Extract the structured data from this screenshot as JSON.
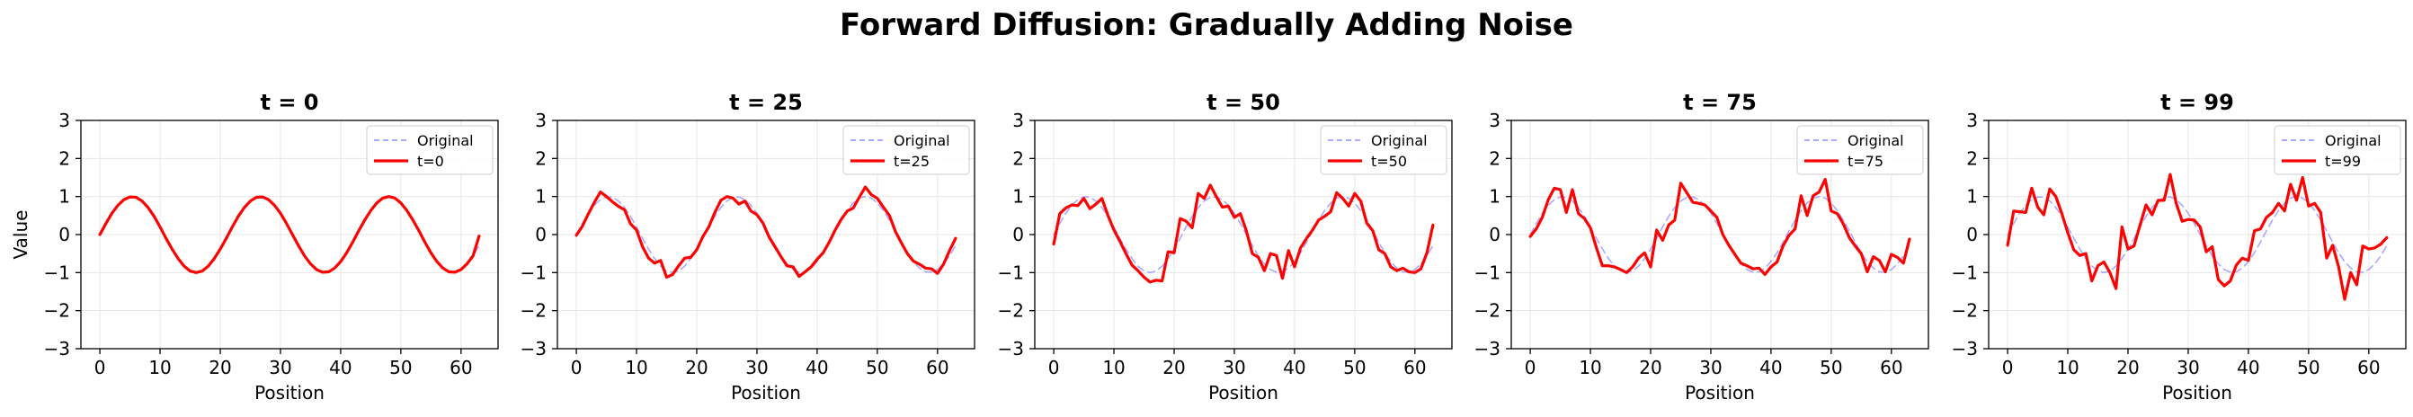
{
  "figure": {
    "title": "Forward Diffusion: Gradually Adding Noise"
  },
  "colors": {
    "original": "#8f8fff",
    "noisy": "#ff0000",
    "grid": "#e6e6e6",
    "axis": "#000000"
  },
  "chart_data": [
    {
      "type": "line",
      "title": "t = 0",
      "xlabel": "Position",
      "ylabel": "Value",
      "xlim": [
        -3.15,
        66.15
      ],
      "ylim": [
        -3,
        3
      ],
      "xticks": [
        0,
        10,
        20,
        30,
        40,
        50,
        60
      ],
      "yticks": [
        -3,
        -2,
        -1,
        0,
        1,
        2,
        3
      ],
      "grid": true,
      "legend": "top-right",
      "x": [
        0,
        1,
        2,
        3,
        4,
        5,
        6,
        7,
        8,
        9,
        10,
        11,
        12,
        13,
        14,
        15,
        16,
        17,
        18,
        19,
        20,
        21,
        22,
        23,
        24,
        25,
        26,
        27,
        28,
        29,
        30,
        31,
        32,
        33,
        34,
        35,
        36,
        37,
        38,
        39,
        40,
        41,
        42,
        43,
        44,
        45,
        46,
        47,
        48,
        49,
        50,
        51,
        52,
        53,
        54,
        55,
        56,
        57,
        58,
        59,
        60,
        61,
        62,
        63
      ],
      "series": [
        {
          "name": "Original",
          "style": "dashed",
          "values": [
            0.0,
            0.29,
            0.56,
            0.77,
            0.92,
            0.99,
            0.98,
            0.88,
            0.71,
            0.48,
            0.2,
            -0.1,
            -0.38,
            -0.63,
            -0.83,
            -0.96,
            -1.0,
            -0.96,
            -0.83,
            -0.63,
            -0.38,
            -0.1,
            0.2,
            0.48,
            0.71,
            0.88,
            0.98,
            0.99,
            0.92,
            0.77,
            0.56,
            0.29,
            0.0,
            -0.29,
            -0.56,
            -0.77,
            -0.92,
            -0.99,
            -0.98,
            -0.88,
            -0.71,
            -0.48,
            -0.2,
            0.1,
            0.38,
            0.63,
            0.83,
            0.96,
            1.0,
            0.96,
            0.83,
            0.63,
            0.38,
            0.1,
            -0.2,
            -0.48,
            -0.71,
            -0.88,
            -0.98,
            -0.99,
            -0.92,
            -0.77,
            -0.56,
            -0.29
          ]
        },
        {
          "name": "t=0",
          "style": "solid",
          "values": [
            0.0,
            0.29,
            0.56,
            0.77,
            0.92,
            0.99,
            0.98,
            0.88,
            0.71,
            0.48,
            0.2,
            -0.1,
            -0.38,
            -0.63,
            -0.83,
            -0.96,
            -1.0,
            -0.96,
            -0.83,
            -0.63,
            -0.38,
            -0.1,
            0.2,
            0.48,
            0.71,
            0.88,
            0.98,
            0.99,
            0.92,
            0.77,
            0.56,
            0.29,
            0.0,
            -0.29,
            -0.56,
            -0.77,
            -0.92,
            -0.99,
            -0.98,
            -0.88,
            -0.71,
            -0.48,
            -0.2,
            0.1,
            0.38,
            0.63,
            0.83,
            0.96,
            1.0,
            0.96,
            0.83,
            0.63,
            0.38,
            0.1,
            -0.2,
            -0.48,
            -0.71,
            -0.88,
            -0.98,
            -0.99,
            -0.92,
            -0.77,
            -0.56,
            -0.04
          ]
        }
      ]
    },
    {
      "type": "line",
      "title": "t = 25",
      "xlabel": "Position",
      "ylabel": "",
      "xlim": [
        -3.15,
        66.15
      ],
      "ylim": [
        -3,
        3
      ],
      "xticks": [
        0,
        10,
        20,
        30,
        40,
        50,
        60
      ],
      "yticks": [
        -3,
        -2,
        -1,
        0,
        1,
        2,
        3
      ],
      "grid": true,
      "legend": "top-right",
      "x": [
        0,
        1,
        2,
        3,
        4,
        5,
        6,
        7,
        8,
        9,
        10,
        11,
        12,
        13,
        14,
        15,
        16,
        17,
        18,
        19,
        20,
        21,
        22,
        23,
        24,
        25,
        26,
        27,
        28,
        29,
        30,
        31,
        32,
        33,
        34,
        35,
        36,
        37,
        38,
        39,
        40,
        41,
        42,
        43,
        44,
        45,
        46,
        47,
        48,
        49,
        50,
        51,
        52,
        53,
        54,
        55,
        56,
        57,
        58,
        59,
        60,
        61,
        62,
        63
      ],
      "series": [
        {
          "name": "Original",
          "style": "dashed",
          "values": [
            0.0,
            0.29,
            0.56,
            0.77,
            0.92,
            0.99,
            0.98,
            0.88,
            0.71,
            0.48,
            0.2,
            -0.1,
            -0.38,
            -0.63,
            -0.83,
            -0.96,
            -1.0,
            -0.96,
            -0.83,
            -0.63,
            -0.38,
            -0.1,
            0.2,
            0.48,
            0.71,
            0.88,
            0.98,
            0.99,
            0.92,
            0.77,
            0.56,
            0.29,
            0.0,
            -0.29,
            -0.56,
            -0.77,
            -0.92,
            -0.99,
            -0.98,
            -0.88,
            -0.71,
            -0.48,
            -0.2,
            0.1,
            0.38,
            0.63,
            0.83,
            0.96,
            1.0,
            0.96,
            0.83,
            0.63,
            0.38,
            0.1,
            -0.2,
            -0.48,
            -0.71,
            -0.88,
            -0.98,
            -0.99,
            -0.92,
            -0.77,
            -0.56,
            -0.29
          ]
        },
        {
          "name": "t=25",
          "style": "solid",
          "values": [
            -0.02,
            0.22,
            0.55,
            0.85,
            1.12,
            1.0,
            0.86,
            0.74,
            0.65,
            0.28,
            0.12,
            -0.32,
            -0.62,
            -0.75,
            -0.68,
            -1.12,
            -1.05,
            -0.82,
            -0.62,
            -0.6,
            -0.4,
            -0.06,
            0.2,
            0.58,
            0.9,
            1.0,
            0.96,
            0.8,
            0.88,
            0.62,
            0.52,
            0.3,
            -0.06,
            -0.32,
            -0.58,
            -0.82,
            -0.85,
            -1.1,
            -0.98,
            -0.85,
            -0.65,
            -0.48,
            -0.2,
            0.12,
            0.4,
            0.62,
            0.7,
            0.98,
            1.25,
            1.05,
            0.95,
            0.72,
            0.5,
            0.08,
            -0.22,
            -0.5,
            -0.7,
            -0.78,
            -0.88,
            -0.9,
            -1.02,
            -0.78,
            -0.42,
            -0.1
          ]
        }
      ]
    },
    {
      "type": "line",
      "title": "t = 50",
      "xlabel": "Position",
      "ylabel": "",
      "xlim": [
        -3.15,
        66.15
      ],
      "ylim": [
        -3,
        3
      ],
      "xticks": [
        0,
        10,
        20,
        30,
        40,
        50,
        60
      ],
      "yticks": [
        -3,
        -2,
        -1,
        0,
        1,
        2,
        3
      ],
      "grid": true,
      "legend": "top-right",
      "x": [
        0,
        1,
        2,
        3,
        4,
        5,
        6,
        7,
        8,
        9,
        10,
        11,
        12,
        13,
        14,
        15,
        16,
        17,
        18,
        19,
        20,
        21,
        22,
        23,
        24,
        25,
        26,
        27,
        28,
        29,
        30,
        31,
        32,
        33,
        34,
        35,
        36,
        37,
        38,
        39,
        40,
        41,
        42,
        43,
        44,
        45,
        46,
        47,
        48,
        49,
        50,
        51,
        52,
        53,
        54,
        55,
        56,
        57,
        58,
        59,
        60,
        61,
        62,
        63
      ],
      "series": [
        {
          "name": "Original",
          "style": "dashed",
          "values": [
            0.0,
            0.29,
            0.56,
            0.77,
            0.92,
            0.99,
            0.98,
            0.88,
            0.71,
            0.48,
            0.2,
            -0.1,
            -0.38,
            -0.63,
            -0.83,
            -0.96,
            -1.0,
            -0.96,
            -0.83,
            -0.63,
            -0.38,
            -0.1,
            0.2,
            0.48,
            0.71,
            0.88,
            0.98,
            0.99,
            0.92,
            0.77,
            0.56,
            0.29,
            0.0,
            -0.29,
            -0.56,
            -0.77,
            -0.92,
            -0.99,
            -0.98,
            -0.88,
            -0.71,
            -0.48,
            -0.2,
            0.1,
            0.38,
            0.63,
            0.83,
            0.96,
            1.0,
            0.96,
            0.83,
            0.63,
            0.38,
            0.1,
            -0.2,
            -0.48,
            -0.71,
            -0.88,
            -0.98,
            -0.99,
            -0.92,
            -0.77,
            -0.56,
            -0.29
          ]
        },
        {
          "name": "t=50",
          "style": "solid",
          "values": [
            -0.25,
            0.55,
            0.7,
            0.78,
            0.76,
            0.95,
            0.68,
            0.8,
            0.95,
            0.5,
            0.12,
            -0.18,
            -0.5,
            -0.8,
            -0.95,
            -1.12,
            -1.25,
            -1.2,
            -1.22,
            -0.45,
            -0.48,
            0.42,
            0.35,
            0.18,
            1.08,
            0.95,
            1.3,
            1.0,
            0.72,
            0.75,
            0.45,
            0.55,
            0.1,
            -0.5,
            -0.6,
            -0.95,
            -0.5,
            -0.55,
            -1.15,
            -0.42,
            -0.85,
            -0.35,
            -0.1,
            0.12,
            0.38,
            0.48,
            0.6,
            1.1,
            0.95,
            0.75,
            1.08,
            0.88,
            0.3,
            0.1,
            -0.4,
            -0.5,
            -0.85,
            -0.95,
            -0.88,
            -0.98,
            -1.0,
            -0.9,
            -0.48,
            0.25
          ]
        }
      ]
    },
    {
      "type": "line",
      "title": "t = 75",
      "xlabel": "Position",
      "ylabel": "",
      "xlim": [
        -3.15,
        66.15
      ],
      "ylim": [
        -3,
        3
      ],
      "xticks": [
        0,
        10,
        20,
        30,
        40,
        50,
        60
      ],
      "yticks": [
        -3,
        -2,
        -1,
        0,
        1,
        2,
        3
      ],
      "grid": true,
      "legend": "top-right",
      "x": [
        0,
        1,
        2,
        3,
        4,
        5,
        6,
        7,
        8,
        9,
        10,
        11,
        12,
        13,
        14,
        15,
        16,
        17,
        18,
        19,
        20,
        21,
        22,
        23,
        24,
        25,
        26,
        27,
        28,
        29,
        30,
        31,
        32,
        33,
        34,
        35,
        36,
        37,
        38,
        39,
        40,
        41,
        42,
        43,
        44,
        45,
        46,
        47,
        48,
        49,
        50,
        51,
        52,
        53,
        54,
        55,
        56,
        57,
        58,
        59,
        60,
        61,
        62,
        63
      ],
      "series": [
        {
          "name": "Original",
          "style": "dashed",
          "values": [
            0.0,
            0.29,
            0.56,
            0.77,
            0.92,
            0.99,
            0.98,
            0.88,
            0.71,
            0.48,
            0.2,
            -0.1,
            -0.38,
            -0.63,
            -0.83,
            -0.96,
            -1.0,
            -0.96,
            -0.83,
            -0.63,
            -0.38,
            -0.1,
            0.2,
            0.48,
            0.71,
            0.88,
            0.98,
            0.99,
            0.92,
            0.77,
            0.56,
            0.29,
            0.0,
            -0.29,
            -0.56,
            -0.77,
            -0.92,
            -0.99,
            -0.98,
            -0.88,
            -0.71,
            -0.48,
            -0.2,
            0.1,
            0.38,
            0.63,
            0.83,
            0.96,
            1.0,
            0.96,
            0.83,
            0.63,
            0.38,
            0.1,
            -0.2,
            -0.48,
            -0.71,
            -0.88,
            -0.98,
            -0.99,
            -0.92,
            -0.77,
            -0.56,
            -0.29
          ]
        },
        {
          "name": "t=75",
          "style": "solid",
          "values": [
            -0.05,
            0.15,
            0.45,
            0.92,
            1.22,
            1.18,
            0.58,
            1.18,
            0.55,
            0.42,
            0.18,
            -0.35,
            -0.82,
            -0.82,
            -0.85,
            -0.92,
            -1.0,
            -0.85,
            -0.62,
            -0.48,
            -0.85,
            0.12,
            -0.15,
            0.25,
            0.38,
            1.35,
            1.1,
            0.85,
            0.82,
            0.78,
            0.62,
            0.45,
            0.0,
            -0.28,
            -0.52,
            -0.75,
            -0.82,
            -0.9,
            -0.88,
            -1.05,
            -0.85,
            -0.72,
            -0.3,
            -0.02,
            0.15,
            1.02,
            0.5,
            1.02,
            1.12,
            1.45,
            0.62,
            0.55,
            0.28,
            -0.08,
            -0.3,
            -0.5,
            -0.98,
            -0.58,
            -0.68,
            -0.98,
            -0.52,
            -0.6,
            -0.75,
            -0.12
          ]
        }
      ]
    },
    {
      "type": "line",
      "title": "t = 99",
      "xlabel": "Position",
      "ylabel": "",
      "xlim": [
        -3.15,
        66.15
      ],
      "ylim": [
        -3,
        3
      ],
      "xticks": [
        0,
        10,
        20,
        30,
        40,
        50,
        60
      ],
      "yticks": [
        -3,
        -2,
        -1,
        0,
        1,
        2,
        3
      ],
      "grid": true,
      "legend": "top-right",
      "x": [
        0,
        1,
        2,
        3,
        4,
        5,
        6,
        7,
        8,
        9,
        10,
        11,
        12,
        13,
        14,
        15,
        16,
        17,
        18,
        19,
        20,
        21,
        22,
        23,
        24,
        25,
        26,
        27,
        28,
        29,
        30,
        31,
        32,
        33,
        34,
        35,
        36,
        37,
        38,
        39,
        40,
        41,
        42,
        43,
        44,
        45,
        46,
        47,
        48,
        49,
        50,
        51,
        52,
        53,
        54,
        55,
        56,
        57,
        58,
        59,
        60,
        61,
        62,
        63
      ],
      "series": [
        {
          "name": "Original",
          "style": "dashed",
          "values": [
            0.0,
            0.29,
            0.56,
            0.77,
            0.92,
            0.99,
            0.98,
            0.88,
            0.71,
            0.48,
            0.2,
            -0.1,
            -0.38,
            -0.63,
            -0.83,
            -0.96,
            -1.0,
            -0.96,
            -0.83,
            -0.63,
            -0.38,
            -0.1,
            0.2,
            0.48,
            0.71,
            0.88,
            0.98,
            0.99,
            0.92,
            0.77,
            0.56,
            0.29,
            0.0,
            -0.29,
            -0.56,
            -0.77,
            -0.92,
            -0.99,
            -0.98,
            -0.88,
            -0.71,
            -0.48,
            -0.2,
            0.1,
            0.38,
            0.63,
            0.83,
            0.96,
            1.0,
            0.96,
            0.83,
            0.63,
            0.38,
            0.1,
            -0.2,
            -0.48,
            -0.71,
            -0.88,
            -0.98,
            -0.99,
            -0.92,
            -0.77,
            -0.56,
            -0.29
          ]
        },
        {
          "name": "t=99",
          "style": "solid",
          "values": [
            -0.28,
            0.62,
            0.6,
            0.58,
            1.22,
            0.72,
            0.52,
            1.2,
            1.0,
            0.55,
            0.05,
            -0.4,
            -0.55,
            -0.5,
            -1.22,
            -0.82,
            -0.72,
            -1.0,
            -1.42,
            0.2,
            -0.38,
            -0.3,
            0.25,
            0.78,
            0.52,
            0.9,
            0.9,
            1.58,
            0.82,
            0.35,
            0.4,
            0.38,
            0.2,
            -0.45,
            -0.32,
            -1.18,
            -1.35,
            -1.22,
            -0.8,
            -0.62,
            -0.68,
            0.1,
            0.15,
            0.45,
            0.58,
            0.82,
            0.62,
            1.32,
            0.9,
            1.5,
            0.75,
            0.82,
            0.58,
            -0.62,
            -0.28,
            -0.85,
            -1.7,
            -1.0,
            -1.32,
            -0.3,
            -0.38,
            -0.35,
            -0.25,
            -0.08
          ]
        }
      ]
    }
  ]
}
